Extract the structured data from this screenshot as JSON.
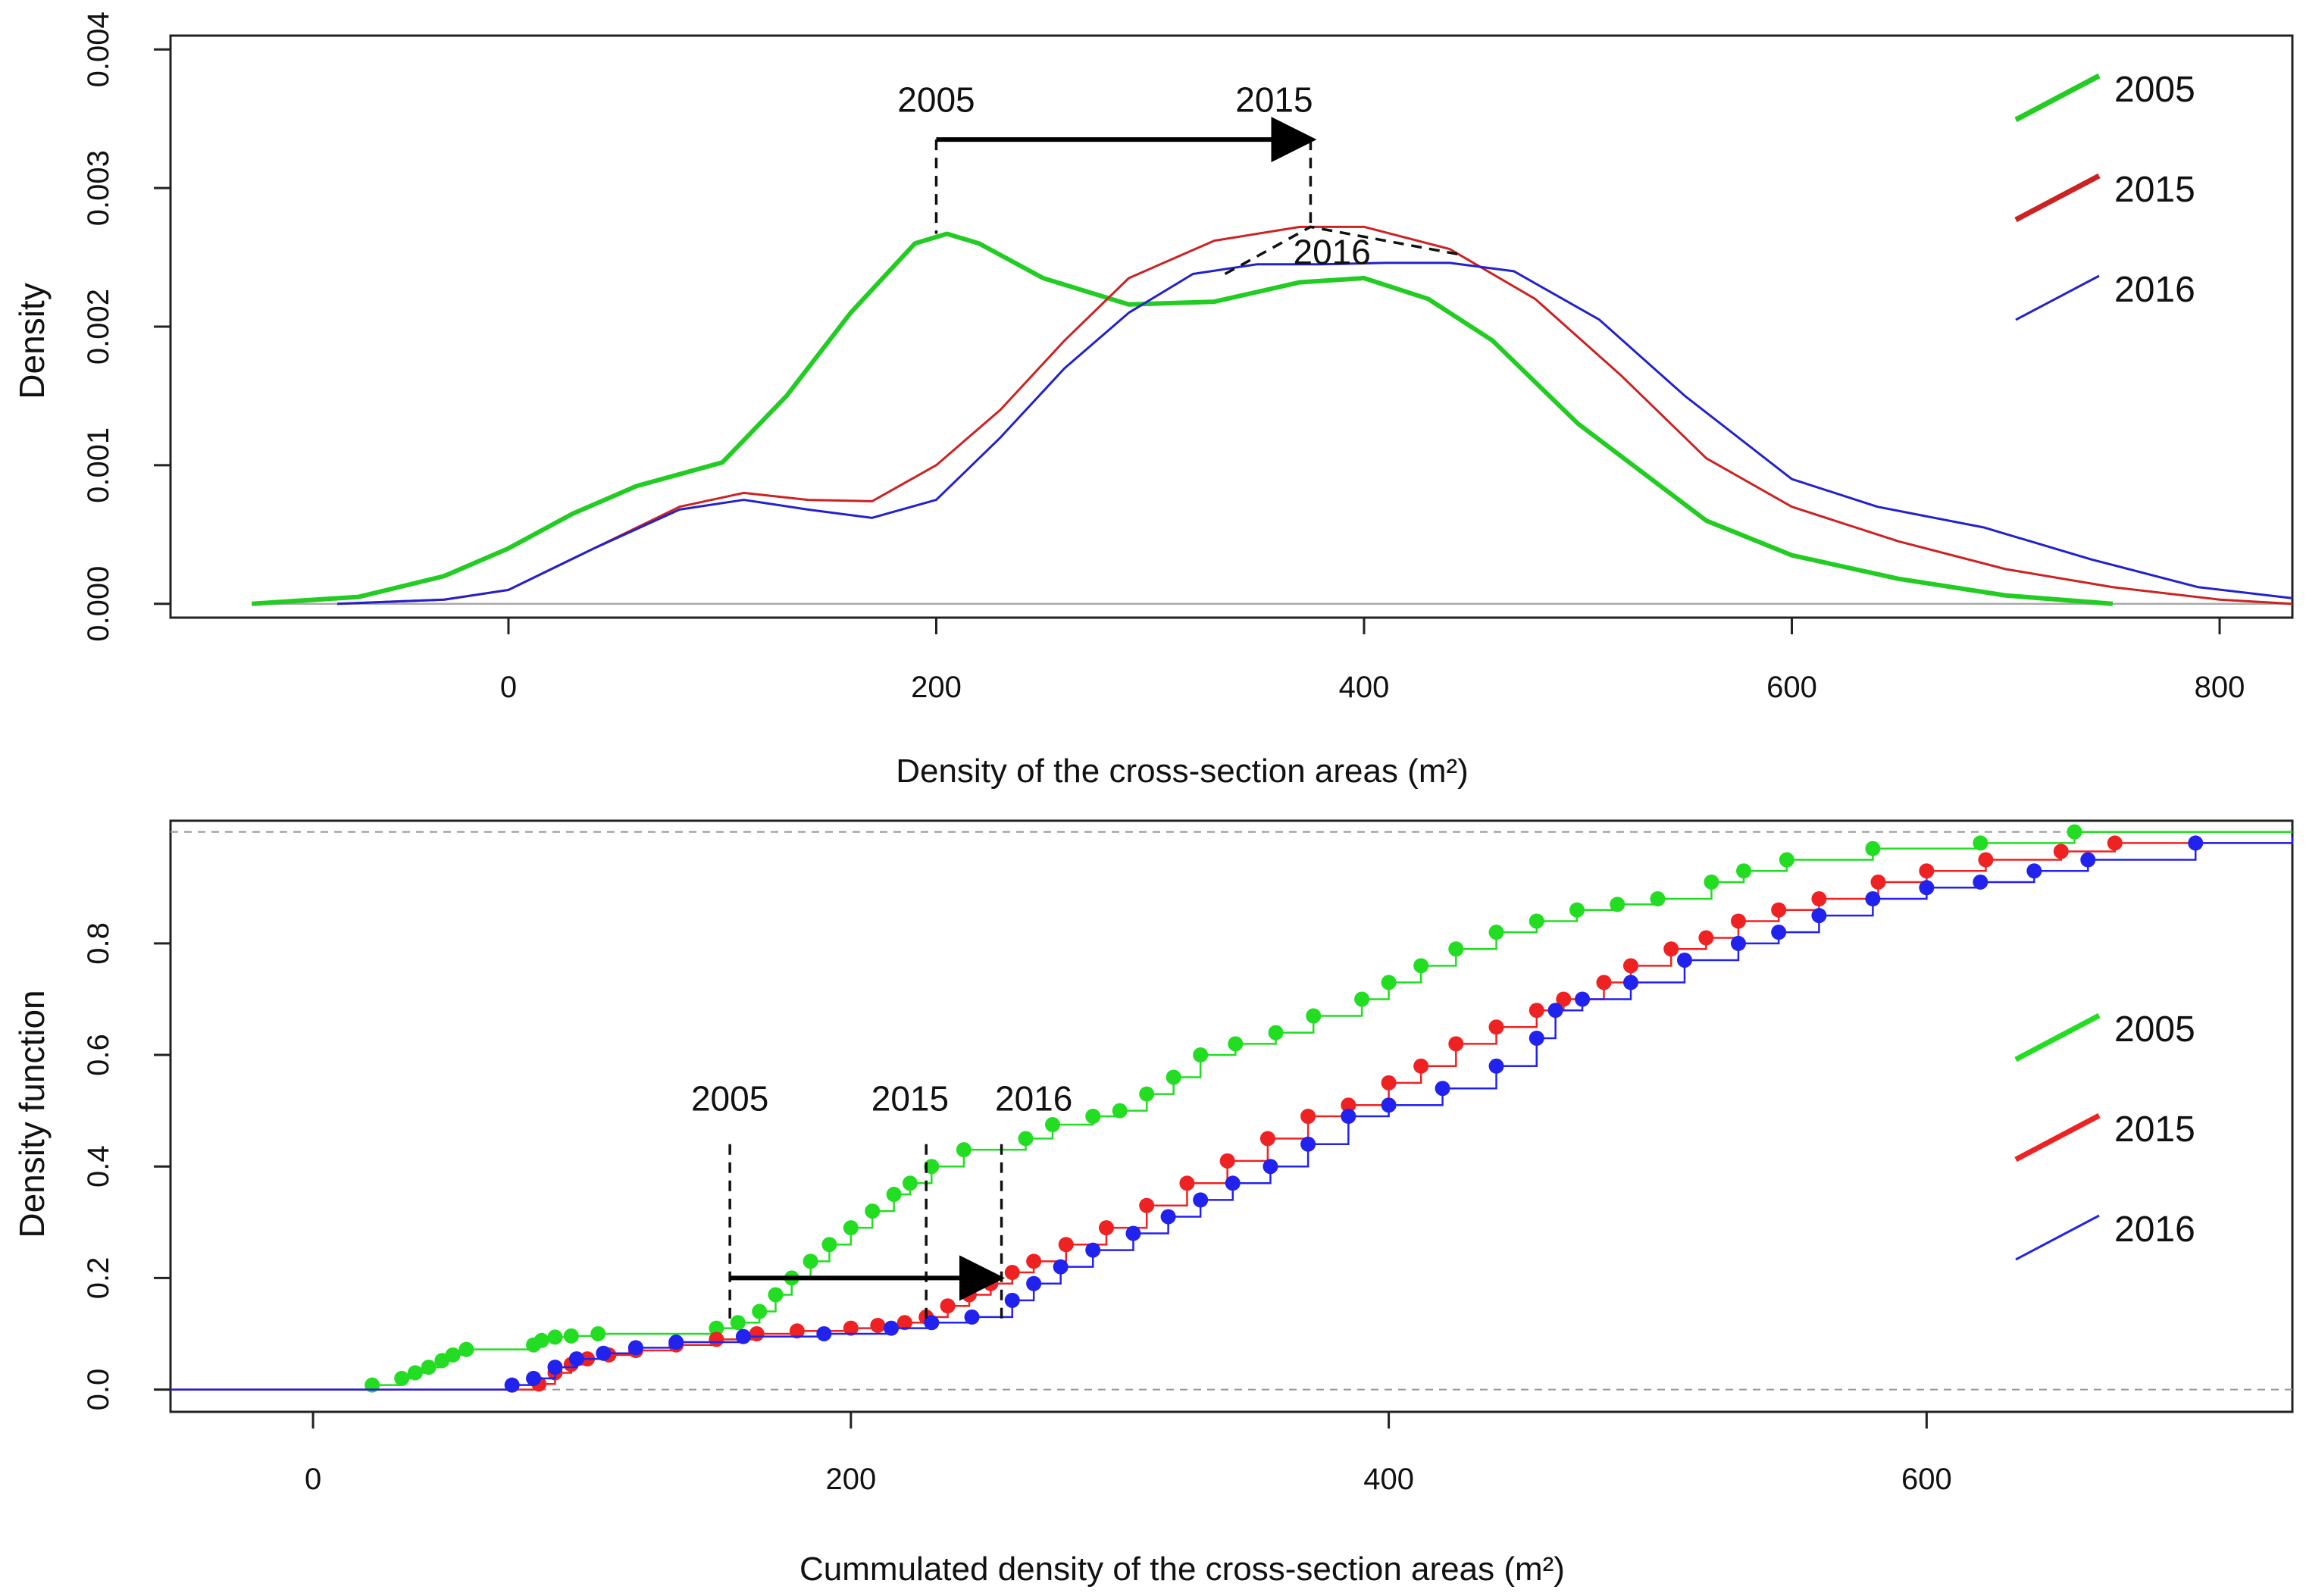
{
  "chart_data": [
    {
      "type": "line",
      "panel": "top",
      "xlabel": "Density of the cross-section areas (m²)",
      "ylabel": "Density",
      "xlim": [
        -158,
        834
      ],
      "ylim": [
        -0.0001,
        0.0041
      ],
      "xticks": [
        0,
        200,
        400,
        600,
        800
      ],
      "xtick_labels": [
        "0",
        "200",
        "400",
        "600",
        "800"
      ],
      "yticks": [
        0.0,
        0.001,
        0.002,
        0.003,
        0.004
      ],
      "ytick_labels": [
        "0.000",
        "0.001",
        "0.002",
        "0.003",
        "0.004"
      ],
      "baseline": 0,
      "legend": {
        "position": "top-right",
        "entries": [
          "2005",
          "2015",
          "2016"
        ]
      },
      "series": [
        {
          "name": "2005",
          "color": "#22cc22",
          "x": [
            -120,
            -70,
            -30,
            0,
            30,
            60,
            100,
            130,
            160,
            190,
            205,
            220,
            250,
            290,
            330,
            370,
            400,
            430,
            460,
            500,
            530,
            560,
            600,
            650,
            700,
            750
          ],
          "y": [
            0.0,
            5e-05,
            0.0002,
            0.0004,
            0.00065,
            0.00085,
            0.00102,
            0.0015,
            0.0021,
            0.0026,
            0.00267,
            0.0026,
            0.00235,
            0.00216,
            0.00218,
            0.00232,
            0.00235,
            0.0022,
            0.0019,
            0.0013,
            0.00095,
            0.0006,
            0.00035,
            0.00018,
            6e-05,
            0.0
          ]
        },
        {
          "name": "2015",
          "color": "#cc2222",
          "x": [
            -80,
            -30,
            0,
            40,
            80,
            110,
            140,
            170,
            200,
            230,
            260,
            290,
            330,
            370,
            400,
            440,
            480,
            520,
            560,
            600,
            650,
            700,
            750,
            800,
            834
          ],
          "y": [
            0.0,
            3e-05,
            0.0001,
            0.0004,
            0.0007,
            0.0008,
            0.00075,
            0.00074,
            0.001,
            0.0014,
            0.0019,
            0.00235,
            0.00262,
            0.00272,
            0.00272,
            0.00256,
            0.0022,
            0.00165,
            0.00105,
            0.0007,
            0.00045,
            0.00025,
            0.00012,
            3e-05,
            0.0
          ]
        },
        {
          "name": "2016",
          "color": "#2222cc",
          "x": [
            -80,
            -30,
            0,
            40,
            80,
            110,
            140,
            170,
            200,
            230,
            260,
            290,
            320,
            350,
            380,
            410,
            440,
            470,
            510,
            550,
            600,
            640,
            690,
            740,
            790,
            834
          ],
          "y": [
            0.0,
            3e-05,
            0.0001,
            0.0004,
            0.00068,
            0.00075,
            0.00068,
            0.00062,
            0.00075,
            0.0012,
            0.0017,
            0.0021,
            0.00238,
            0.00245,
            0.00245,
            0.00246,
            0.00246,
            0.0024,
            0.00205,
            0.0015,
            0.0009,
            0.0007,
            0.00055,
            0.00032,
            0.00012,
            4e-05
          ]
        }
      ],
      "annotations": {
        "arrow": {
          "from_x": 200,
          "to_x": 375,
          "y": 0.00335
        },
        "dashed_drops": [
          {
            "x": 200,
            "y_from": 0.00335,
            "y_to": 0.00267
          },
          {
            "x": 375,
            "y_from": 0.00335,
            "y_to": 0.00272
          }
        ],
        "dashed_lead": {
          "x": [
            335,
            375,
            445
          ],
          "y": [
            0.00238,
            0.00272,
            0.00252
          ]
        },
        "labels": [
          {
            "text": "2005",
            "x": 200,
            "y": 0.00355
          },
          {
            "text": "2015",
            "x": 358,
            "y": 0.00355
          },
          {
            "text": "2016",
            "x": 385,
            "y": 0.00245
          }
        ]
      }
    },
    {
      "type": "scatter",
      "panel": "bottom",
      "subtype": "ecdf",
      "xlabel": "Cummulated density of the cross-section areas (m²)",
      "ylabel": "Density function",
      "xlim": [
        -53,
        736
      ],
      "ylim": [
        -0.04,
        1.02
      ],
      "xticks": [
        0,
        200,
        400,
        600
      ],
      "xtick_labels": [
        "0",
        "200",
        "400",
        "600"
      ],
      "yticks": [
        0.0,
        0.2,
        0.4,
        0.6,
        0.8
      ],
      "ytick_labels": [
        "0.0",
        "0.2",
        "0.4",
        "0.6",
        "0.8"
      ],
      "reference_lines": [
        0,
        1
      ],
      "legend": {
        "position": "right",
        "entries": [
          "2005",
          "2015",
          "2016"
        ]
      },
      "series": [
        {
          "name": "2005",
          "color": "#22dd22",
          "x": [
            -53,
            22,
            33,
            38,
            43,
            48,
            52,
            57,
            82,
            85,
            90,
            96,
            106,
            150,
            158,
            166,
            172,
            178,
            185,
            192,
            200,
            208,
            216,
            222,
            230,
            242,
            265,
            275,
            290,
            300,
            310,
            320,
            330,
            343,
            358,
            372,
            390,
            400,
            412,
            425,
            440,
            455,
            470,
            485,
            500,
            520,
            532,
            548,
            580,
            620,
            655,
            736
          ],
          "y": [
            0.0,
            0.008,
            0.02,
            0.03,
            0.04,
            0.052,
            0.062,
            0.072,
            0.08,
            0.088,
            0.094,
            0.096,
            0.1,
            0.11,
            0.12,
            0.14,
            0.17,
            0.2,
            0.23,
            0.26,
            0.29,
            0.32,
            0.35,
            0.37,
            0.4,
            0.43,
            0.45,
            0.475,
            0.49,
            0.5,
            0.53,
            0.56,
            0.6,
            0.62,
            0.64,
            0.67,
            0.7,
            0.73,
            0.76,
            0.79,
            0.82,
            0.84,
            0.86,
            0.87,
            0.88,
            0.91,
            0.93,
            0.95,
            0.97,
            0.98,
            1.0,
            1.0
          ]
        },
        {
          "name": "2015",
          "color": "#ee2222",
          "x": [
            -53,
            84,
            90,
            96,
            102,
            110,
            120,
            135,
            150,
            165,
            180,
            200,
            210,
            220,
            228,
            236,
            244,
            252,
            260,
            268,
            280,
            295,
            310,
            325,
            340,
            355,
            370,
            385,
            400,
            412,
            425,
            440,
            455,
            465,
            480,
            490,
            505,
            518,
            530,
            545,
            560,
            582,
            600,
            622,
            650,
            670,
            736
          ],
          "y": [
            0.0,
            0.01,
            0.03,
            0.045,
            0.055,
            0.062,
            0.07,
            0.08,
            0.09,
            0.1,
            0.105,
            0.11,
            0.115,
            0.12,
            0.13,
            0.15,
            0.17,
            0.19,
            0.21,
            0.23,
            0.26,
            0.29,
            0.33,
            0.37,
            0.41,
            0.45,
            0.49,
            0.51,
            0.55,
            0.58,
            0.62,
            0.65,
            0.68,
            0.7,
            0.73,
            0.76,
            0.79,
            0.81,
            0.84,
            0.86,
            0.88,
            0.91,
            0.93,
            0.95,
            0.965,
            0.98,
            0.99
          ]
        },
        {
          "name": "2016",
          "color": "#2222ee",
          "x": [
            -53,
            74,
            82,
            90,
            98,
            108,
            120,
            135,
            160,
            190,
            215,
            230,
            245,
            260,
            268,
            278,
            290,
            305,
            318,
            330,
            342,
            356,
            370,
            385,
            400,
            420,
            440,
            455,
            462,
            472,
            490,
            510,
            530,
            545,
            560,
            580,
            600,
            620,
            640,
            660,
            700,
            736
          ],
          "y": [
            0.0,
            0.008,
            0.02,
            0.04,
            0.055,
            0.065,
            0.075,
            0.085,
            0.095,
            0.1,
            0.11,
            0.12,
            0.13,
            0.16,
            0.19,
            0.22,
            0.25,
            0.28,
            0.31,
            0.34,
            0.37,
            0.4,
            0.44,
            0.49,
            0.51,
            0.54,
            0.58,
            0.63,
            0.68,
            0.7,
            0.73,
            0.77,
            0.8,
            0.82,
            0.85,
            0.88,
            0.9,
            0.91,
            0.93,
            0.95,
            0.98,
            0.99
          ]
        }
      ],
      "annotations": {
        "arrow": {
          "from_x": 155,
          "to_x": 255,
          "y": 0.2
        },
        "dashed_drops": [
          {
            "x": 155,
            "y_from": 0.44,
            "y_to": 0.12
          },
          {
            "x": 228,
            "y_from": 0.44,
            "y_to": 0.12
          },
          {
            "x": 256,
            "y_from": 0.44,
            "y_to": 0.12
          }
        ],
        "labels": [
          {
            "text": "2005",
            "x": 155,
            "y": 0.5
          },
          {
            "text": "2015",
            "x": 222,
            "y": 0.5
          },
          {
            "text": "2016",
            "x": 268,
            "y": 0.5
          }
        ]
      }
    }
  ]
}
